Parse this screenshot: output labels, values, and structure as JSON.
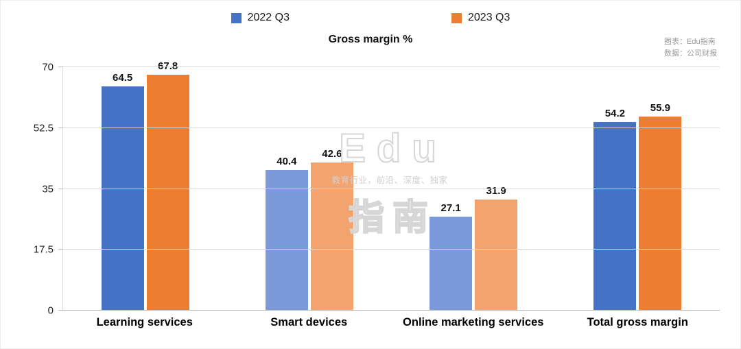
{
  "header": {
    "title": "Gross margin %",
    "credits": [
      "图表：Edu指南",
      "数据：公司财报"
    ]
  },
  "legend": [
    {
      "label": "2022 Q3",
      "color": "#4472C4"
    },
    {
      "label": "2023 Q3",
      "color": "#ED7D31"
    }
  ],
  "watermark": {
    "line1": "Edu",
    "line2": "教育行业，前沿、深度、独家",
    "line3": "指南"
  },
  "chart_data": {
    "type": "bar",
    "title": "Gross margin %",
    "categories": [
      "Learning services",
      "Smart devices",
      "Online marketing services",
      "Total gross margin"
    ],
    "series": [
      {
        "name": "2022 Q3",
        "values": [
          64.5,
          40.4,
          27.1,
          54.2
        ],
        "color": "#4472C4",
        "color_light": "#7A9AD9"
      },
      {
        "name": "2023 Q3",
        "values": [
          67.8,
          42.6,
          31.9,
          55.9
        ],
        "color": "#ED7D31",
        "color_light": "#F2A36E"
      }
    ],
    "muted_categories": [
      false,
      true,
      true,
      false
    ],
    "ylim": [
      0,
      70
    ],
    "yticks": [
      0,
      17.5,
      35,
      52.5,
      70
    ],
    "grid": true,
    "legend_position": "top"
  }
}
